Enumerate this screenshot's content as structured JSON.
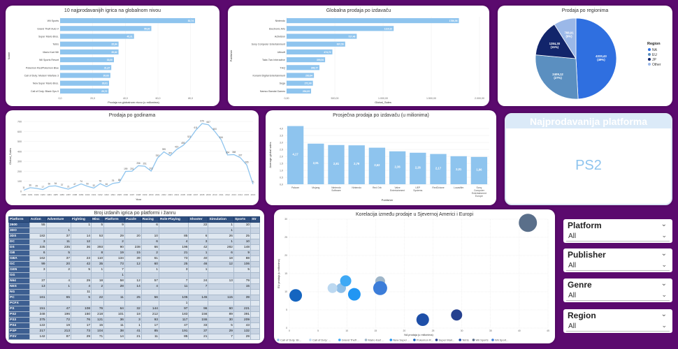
{
  "top10": {
    "title": "10 najprodavanijih igrica na globalnom nivou",
    "xlabel": "Prodaja na globalnom nivou (u milionima)",
    "ylabel": "Name",
    "xticks": [
      "0,0",
      "20,0",
      "40,0",
      "60,0",
      "80,0"
    ],
    "chart_data": {
      "type": "bar",
      "categories": [
        "Wii Sports",
        "Grand Theft Auto V",
        "Super Mario Bros.",
        "Tetris",
        "Mario Kart Wii",
        "Wii Sports Resort",
        "Pokemon Red/Pokemon Blue",
        "Call of Duty: Modern Warfare 3",
        "New Super Mario Bros.",
        "Call of Duty: Black Ops II"
      ],
      "values": [
        82.74,
        55.92,
        45.31,
        35.84,
        35.82,
        33.0,
        31.37,
        30.83,
        30.01,
        29.72
      ],
      "labels": [
        "82,74",
        "55,92",
        "45,31",
        "35,84",
        "35,82",
        "33,00",
        "31,37",
        "30,83",
        "30,01",
        "29,72"
      ],
      "xlim": [
        0,
        90
      ]
    }
  },
  "publisher": {
    "title": "Globalna prodaja po izdavaču",
    "xlabel": "Global_Sales",
    "ylabel": "Publisher",
    "xticks": [
      "0,00",
      "500,00",
      "1.000,00",
      "1.500,00",
      "2.000,00"
    ],
    "chart_data": {
      "type": "bar",
      "categories": [
        "Nintendo",
        "Electronic Arts",
        "Activision",
        "Sony Computer Entertainment",
        "Ubisoft",
        "Take-Two Interactive",
        "THQ",
        "Konami Digital Entertainment",
        "Sega",
        "Namco Bandai Games"
      ],
      "values": [
        1786.56,
        1110.32,
        727.46,
        607.5,
        474.72,
        399.54,
        340.77,
        283.64,
        272.99,
        254.09
      ],
      "labels": [
        "1786,56",
        "1110,32",
        "727,46",
        "607,50",
        "474,72",
        "399,54",
        "340,77",
        "283,64",
        "272,99",
        "254,09"
      ],
      "xlim": [
        0,
        2000
      ]
    }
  },
  "region": {
    "title": "Prodaja po regionima",
    "legend_title": "Region",
    "chart_data": {
      "type": "pie",
      "categories": [
        "NA",
        "EU",
        "JP",
        "Other"
      ],
      "values": [
        4333.43,
        2409.12,
        1284.3,
        788.91
      ],
      "labels": [
        "4333,43 (49%)",
        "2409,12 (27%)",
        "1284,30 (15%)",
        "788,91 (9%)"
      ]
    },
    "colors": [
      "#2f6fe0",
      "#5b8fc0",
      "#12256b",
      "#9bb8e8"
    ]
  },
  "years": {
    "title": "Prodaja po godinama",
    "xlabel": "Year",
    "ylabel": "Global_Sales",
    "yticks": [
      "0",
      "100",
      "200",
      "300",
      "400",
      "500",
      "600",
      "700"
    ],
    "chart_data": {
      "type": "line",
      "x": [
        "1980",
        "1981",
        "1982",
        "1983",
        "1984",
        "1985",
        "1986",
        "1987",
        "1988",
        "1989",
        "1990",
        "1991",
        "1992",
        "1993",
        "1994",
        "1995",
        "1996",
        "1997",
        "1998",
        "1999",
        "2000",
        "2001",
        "2002",
        "2003",
        "2004",
        "2005",
        "2006",
        "2007",
        "2008",
        "2009",
        "2010",
        "2011",
        "2012",
        "2013",
        "2014",
        "2015",
        "2016"
      ],
      "values": [
        11,
        36,
        29,
        17,
        50,
        54,
        37,
        21,
        47,
        74,
        50,
        32,
        76,
        46,
        79,
        88,
        199,
        201,
        256,
        251,
        202,
        332,
        395,
        357,
        419,
        459,
        521,
        611,
        679,
        667,
        600,
        516,
        364,
        368,
        337,
        265,
        71
      ],
      "ylim": [
        0,
        700
      ]
    }
  },
  "avgpub": {
    "title": "Prosječna prodaja po izdavaču (u milionima)",
    "xlabel": "Publisher",
    "ylabel": "Average global sales",
    "yticks": [
      "0,0",
      "0,5",
      "1,0",
      "1,5",
      "2,0",
      "2,5",
      "3,0",
      "3,5",
      "4,0"
    ],
    "chart_data": {
      "type": "bar",
      "categories": [
        "Palcom",
        "Mojang",
        "Nintendo Software",
        "Nintendo",
        "Red Orb",
        "Valve Entertainment",
        "UEP Systems",
        "RedOctane",
        "Lucasfilm",
        "Sony Computer Entertainment Europe"
      ],
      "values": [
        4.17,
        2.91,
        2.81,
        2.79,
        2.62,
        2.36,
        2.26,
        2.17,
        2.01,
        1.96
      ],
      "labels": [
        "4,17",
        "2,91",
        "2,81",
        "2,79",
        "2,62",
        "2,36",
        "2,26",
        "2,17",
        "2,01",
        "1,96"
      ],
      "ylim": [
        0,
        4.2
      ]
    }
  },
  "kpi": {
    "title": "Najprodavanija platforma",
    "value": "PS2"
  },
  "matrix": {
    "title": "Broj izdanih igrica po platformi i žanru",
    "columns": [
      "Platform",
      "Action",
      "Adventure",
      "Fighting",
      "Misc",
      "Platform",
      "Puzzle",
      "Racing",
      "Role-Playing",
      "Shooter",
      "Simulation",
      "Sports",
      "Str"
    ],
    "rows": [
      [
        "2600",
        "55",
        "",
        "1",
        "5",
        "9",
        "",
        "6",
        "",
        "22",
        "1",
        "10",
        ""
      ],
      [
        "3DO",
        "",
        "1",
        "",
        "",
        "",
        "",
        "",
        "",
        "",
        "1",
        "",
        ""
      ],
      [
        "3DS",
        "182",
        "37",
        "14",
        "53",
        "29",
        "20",
        "10",
        "85",
        "6",
        "26",
        "25",
        ""
      ],
      [
        "DC",
        "3",
        "11",
        "12",
        "",
        "2",
        "",
        "6",
        "4",
        "3",
        "1",
        "10",
        ""
      ],
      [
        "DS",
        "335",
        "235",
        "36",
        "393",
        "90",
        "238",
        "66",
        "196",
        "42",
        "282",
        "148",
        ""
      ],
      [
        "GB",
        "6",
        "5",
        "",
        "8",
        "19",
        "15",
        "2",
        "21",
        "1",
        "6",
        "9",
        ""
      ],
      [
        "GBA",
        "162",
        "37",
        "23",
        "110",
        "134",
        "39",
        "61",
        "73",
        "40",
        "18",
        "88",
        ""
      ],
      [
        "GC",
        "99",
        "20",
        "42",
        "35",
        "73",
        "12",
        "60",
        "25",
        "46",
        "12",
        "106",
        ""
      ],
      [
        "GEN",
        "3",
        "2",
        "5",
        "1",
        "7",
        "",
        "1",
        "3",
        "1",
        "",
        "5",
        ""
      ],
      [
        "GG",
        "",
        "",
        "",
        "",
        "1",
        "",
        "",
        "",
        "",
        "",
        "",
        ""
      ],
      [
        "N64",
        "37",
        "4",
        "29",
        "18",
        "58",
        "12",
        "57",
        "7",
        "24",
        "13",
        "79",
        ""
      ],
      [
        "NES",
        "13",
        "1",
        "4",
        "2",
        "28",
        "14",
        "4",
        "11",
        "7",
        "",
        "15",
        ""
      ],
      [
        "NG",
        "",
        "",
        "11",
        "",
        "",
        "",
        "",
        "",
        "",
        "",
        "",
        ""
      ],
      [
        "PC",
        "161",
        "65",
        "5",
        "22",
        "11",
        "25",
        "56",
        "105",
        "145",
        "115",
        "39",
        ""
      ],
      [
        "PCFX",
        "",
        "",
        "",
        "",
        "",
        "",
        "",
        "1",
        "",
        "",
        "",
        ""
      ],
      [
        "PS",
        "151",
        "47",
        "108",
        "76",
        "64",
        "32",
        "144",
        "97",
        "96",
        "60",
        "221",
        ""
      ],
      [
        "PS2",
        "348",
        "196",
        "150",
        "218",
        "101",
        "18",
        "212",
        "183",
        "156",
        "89",
        "391",
        ""
      ],
      [
        "PS3",
        "375",
        "72",
        "76",
        "121",
        "36",
        "3",
        "93",
        "117",
        "155",
        "30",
        "209",
        ""
      ],
      [
        "PS4",
        "122",
        "19",
        "17",
        "15",
        "11",
        "1",
        "17",
        "47",
        "33",
        "5",
        "43",
        ""
      ],
      [
        "PSP",
        "217",
        "213",
        "73",
        "104",
        "38",
        "41",
        "85",
        "191",
        "37",
        "29",
        "132",
        ""
      ],
      [
        "PSV",
        "142",
        "87",
        "29",
        "71",
        "14",
        "21",
        "11",
        "85",
        "21",
        "7",
        "29",
        ""
      ]
    ]
  },
  "scatter": {
    "title": "Korelacija između prodaje u Sjevernoj Americi i Europi",
    "xlabel": "NA prodaja (u milionima)",
    "ylabel": "EU prodaja (u milionima)",
    "xticks": [
      "0",
      "5",
      "10",
      "15",
      "20",
      "25",
      "30",
      "35",
      "40",
      "45"
    ],
    "yticks": [
      "0",
      "5",
      "10",
      "15",
      "20",
      "25",
      "30"
    ],
    "chart_data": {
      "type": "scatter",
      "xlim": [
        0,
        45
      ],
      "ylim": [
        0,
        30
      ],
      "points": [
        {
          "name": "Call of Duty: Bl...",
          "x": 9.0,
          "y": 11.0,
          "color": "#8fbfe8",
          "r": 7
        },
        {
          "name": "Call of Duty: ...",
          "x": 7.5,
          "y": 11.0,
          "color": "#bcd8f0",
          "r": 7
        },
        {
          "name": "Grand Theft ...",
          "x": 9.8,
          "y": 13.0,
          "color": "#3fa9f5",
          "r": 8
        },
        {
          "name": "Mario Kart ...",
          "x": 15.8,
          "y": 12.9,
          "color": "#9fb6c9",
          "r": 7
        },
        {
          "name": "New Super ...",
          "x": 11.3,
          "y": 9.3,
          "color": "#2196f3",
          "r": 9
        },
        {
          "name": "Pokemon R...",
          "x": 1.1,
          "y": 9.0,
          "color": "#1565c0",
          "r": 9
        },
        {
          "name": "Super Mari...",
          "x": 29.1,
          "y": 3.6,
          "color": "#26418f",
          "r": 8
        },
        {
          "name": "Tetris",
          "x": 23.2,
          "y": 2.3,
          "color": "#1e4fa8",
          "r": 9
        },
        {
          "name": "Wii Sports",
          "x": 41.5,
          "y": 29.0,
          "color": "#5a6f8a",
          "r": 13
        },
        {
          "name": "Wii Sport...",
          "x": 15.8,
          "y": 11.0,
          "color": "#3c7dd9",
          "r": 10
        }
      ]
    }
  },
  "slicers": [
    {
      "title": "Platform",
      "value": "All"
    },
    {
      "title": "Publisher",
      "value": "All"
    },
    {
      "title": "Genre",
      "value": "All"
    },
    {
      "title": "Region",
      "value": "All"
    }
  ]
}
